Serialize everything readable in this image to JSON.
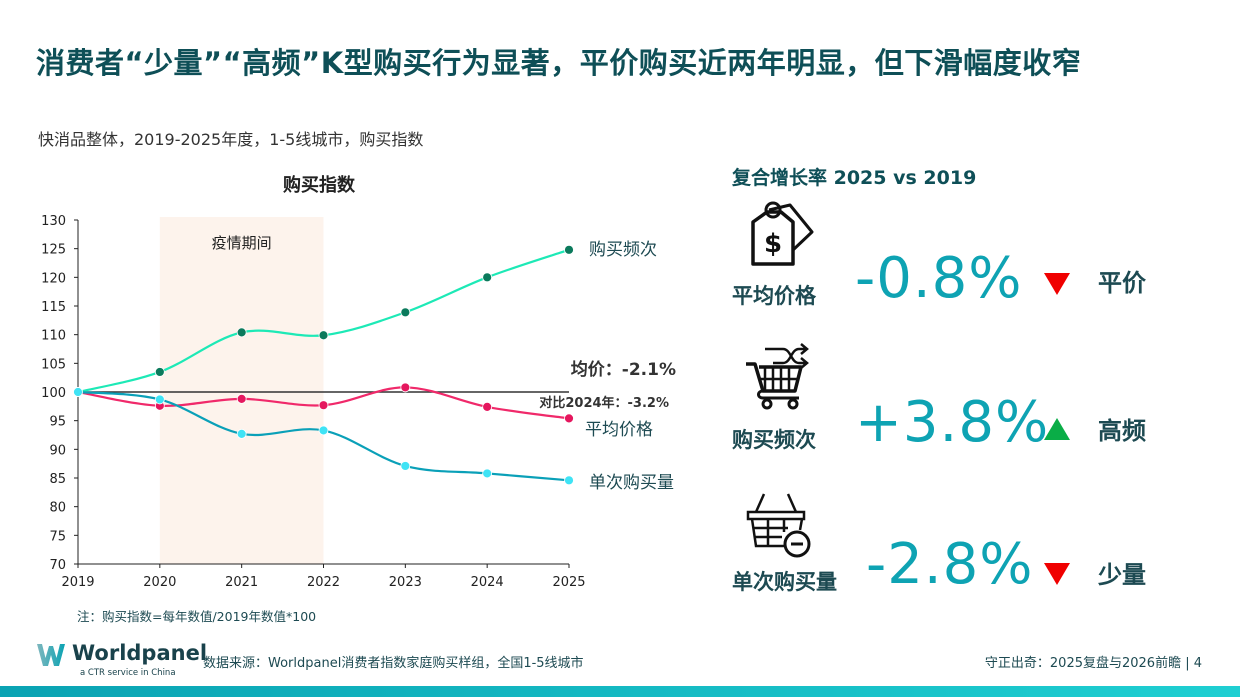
{
  "title": "消费者“少量”“高频”K型购买行为显著，平价购买近两年明显，但下滑幅度收窄",
  "subtitle": "快消品整体，2019-2025年度，1-5线城市，购买指数",
  "note": "注：购买指数=每年数值/2019年数值*100",
  "source": "数据来源：Worldpanel消费者指数家庭购买样组，全国1-5线城市",
  "footer_right": "守正出奇：2025复盘与2026前瞻 | 4",
  "logo": {
    "name": "Worldpanel",
    "tagline": "a CTR service in China"
  },
  "chart_data": {
    "type": "line",
    "title": "购买指数",
    "x": [
      "2019",
      "2020",
      "2021",
      "2022",
      "2023",
      "2024",
      "2025"
    ],
    "ylim": [
      70,
      130
    ],
    "yticks": [
      70,
      75,
      80,
      85,
      90,
      95,
      100,
      105,
      110,
      115,
      120,
      125,
      130
    ],
    "grid": false,
    "shaded_region": {
      "from": "2020",
      "to": "2022",
      "label": "疫情期间",
      "color": "#fdf3ec"
    },
    "reference_line": 100,
    "annotations": {
      "avg_price": "均价：-2.1%",
      "vs_2024": "对比2024年：-3.2%"
    },
    "series": [
      {
        "name": "购买频次",
        "color": "#1de9b6",
        "marker_color": "#0b7a5c",
        "values": [
          100,
          103.5,
          110.4,
          109.9,
          113.9,
          120.0,
          124.8
        ]
      },
      {
        "name": "平均价格",
        "color": "#f0296a",
        "marker_color": "#e5175e",
        "values": [
          100,
          97.6,
          98.8,
          97.7,
          100.8,
          97.4,
          95.4
        ]
      },
      {
        "name": "单次购买量",
        "color": "#0aa0b8",
        "marker_color": "#3fe3f5",
        "values": [
          100,
          98.7,
          92.7,
          93.3,
          87.1,
          85.8,
          84.6
        ]
      }
    ]
  },
  "right_panel": {
    "title": "复合增长率 2025 vs 2019",
    "metrics": [
      {
        "label": "平均价格",
        "value": "-0.8%",
        "direction": "down",
        "tag": "平价",
        "icon": "price-tag-icon"
      },
      {
        "label": "购买频次",
        "value": "+3.8%",
        "direction": "up",
        "tag": "高频",
        "icon": "shopping-cart-shuffle-icon"
      },
      {
        "label": "单次购买量",
        "value": "-2.8%",
        "direction": "down",
        "tag": "少量",
        "icon": "basket-minus-icon"
      }
    ]
  }
}
